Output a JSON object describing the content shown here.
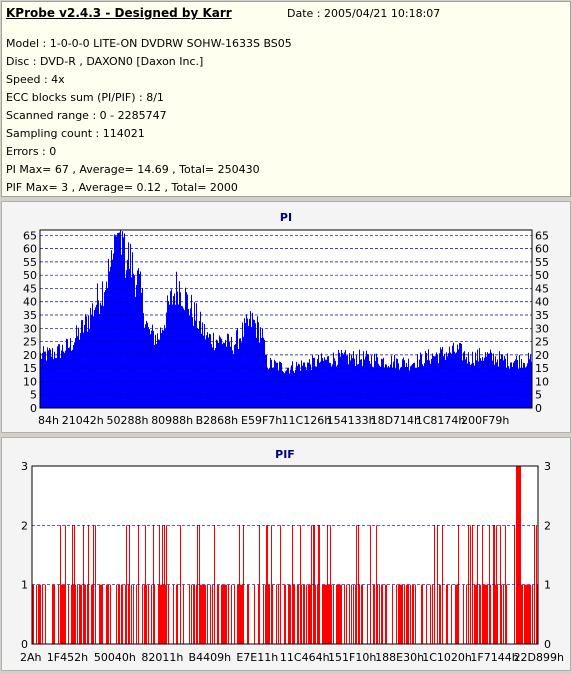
{
  "header": {
    "title": "KProbe v2.4.3 - Designed by Karr",
    "date": "Date : 2005/04/21 10:18:07",
    "lines": [
      "Model : 1-0-0-0 LITE-ON DVDRW SOHW-1633S BS05",
      "Disc : DVD-R , DAXON0 [Daxon Inc.]",
      "Speed : 4x",
      "ECC blocks sum (PI/PIF) : 8/1",
      "Scanned range : 0 - 2285747",
      "Sampling count : 114021",
      "Errors : 0",
      "PI Max= 67 , Average= 14.69 , Total= 250430",
      "PIF Max= 3 , Average= 0.12 , Total= 2000"
    ]
  },
  "colors": {
    "pi": "#0000ff",
    "pif": "#ff0000",
    "grid": "#0000a0",
    "title": "#000080"
  },
  "chart_data": [
    {
      "type": "area",
      "title": "PI",
      "xlabel": "",
      "ylabel": "",
      "ylim": [
        0,
        67
      ],
      "yticks": [
        0,
        5,
        10,
        15,
        20,
        25,
        30,
        35,
        40,
        45,
        50,
        55,
        60,
        65
      ],
      "xtick_labels": [
        "84h",
        "21042h",
        "50288h",
        "80988h",
        "B2868h",
        "E59F7h",
        "11C126h",
        "154133h",
        "18D714h",
        "1C8174h",
        "200F79h"
      ],
      "xlim": [
        0,
        2285747
      ],
      "grid": true,
      "profile": [
        [
          0,
          21
        ],
        [
          0.03,
          22
        ],
        [
          0.06,
          25
        ],
        [
          0.09,
          33
        ],
        [
          0.12,
          45
        ],
        [
          0.14,
          55
        ],
        [
          0.16,
          62
        ],
        [
          0.18,
          60
        ],
        [
          0.2,
          50
        ],
        [
          0.22,
          30
        ],
        [
          0.24,
          28
        ],
        [
          0.26,
          40
        ],
        [
          0.28,
          50
        ],
        [
          0.3,
          42
        ],
        [
          0.32,
          35
        ],
        [
          0.34,
          28
        ],
        [
          0.37,
          27
        ],
        [
          0.39,
          25
        ],
        [
          0.41,
          30
        ],
        [
          0.43,
          35
        ],
        [
          0.45,
          30
        ],
        [
          0.46,
          18
        ],
        [
          0.5,
          16
        ],
        [
          0.55,
          18
        ],
        [
          0.6,
          20
        ],
        [
          0.65,
          20
        ],
        [
          0.7,
          19
        ],
        [
          0.75,
          18
        ],
        [
          0.8,
          21
        ],
        [
          0.85,
          23
        ],
        [
          0.87,
          20
        ],
        [
          0.9,
          21
        ],
        [
          0.95,
          19
        ],
        [
          1,
          19
        ]
      ]
    },
    {
      "type": "bar",
      "title": "PIF",
      "xlabel": "",
      "ylabel": "",
      "ylim": [
        0,
        3
      ],
      "yticks": [
        0,
        1,
        2,
        3
      ],
      "xtick_labels": [
        "2Ah",
        "1F452h",
        "50040h",
        "82011h",
        "B4409h",
        "E7E11h",
        "11C464h",
        "151F10h",
        "188E30h",
        "1C1020h",
        "1F7144h",
        "22D899h"
      ],
      "xlim": [
        0,
        2285747
      ],
      "grid": true,
      "max": 3,
      "average": 0.12,
      "total": 2000
    }
  ]
}
